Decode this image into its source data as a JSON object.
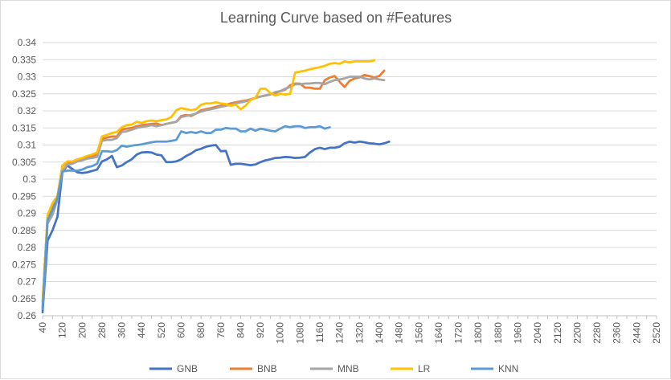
{
  "chart_data": {
    "type": "line",
    "title": "Learning Curve based on #Features",
    "xlabel": "",
    "ylabel": "",
    "ylim": [
      0.26,
      0.34
    ],
    "y_ticks": [
      "0.26",
      "0.265",
      "0.27",
      "0.275",
      "0.28",
      "0.285",
      "0.29",
      "0.295",
      "0.3",
      "0.305",
      "0.31",
      "0.315",
      "0.32",
      "0.325",
      "0.33",
      "0.335",
      "0.34"
    ],
    "x_ticks": [
      "40",
      "80",
      "120",
      "160",
      "200",
      "240",
      "280",
      "320",
      "360",
      "400",
      "440",
      "480",
      "520",
      "560",
      "600",
      "640",
      "680",
      "720",
      "760",
      "800",
      "840",
      "880",
      "920",
      "960",
      "1000",
      "1040",
      "1080",
      "1120",
      "1160",
      "1200",
      "1240",
      "1280",
      "1320",
      "1360",
      "1400",
      "1440",
      "1480",
      "1520",
      "1560",
      "1600",
      "1640",
      "1680",
      "1720",
      "1760",
      "1800",
      "1840",
      "1880",
      "1920",
      "1960",
      "2000",
      "2040",
      "2080",
      "2120",
      "2160",
      "2200",
      "2240",
      "2280",
      "2320",
      "2360",
      "2400",
      "2440",
      "2480",
      "2520"
    ],
    "x_tick_labels_visible": [
      "40",
      "120",
      "200",
      "280",
      "360",
      "440",
      "520",
      "600",
      "680",
      "760",
      "840",
      "920",
      "1000",
      "1080",
      "1160",
      "1240",
      "1320",
      "1400",
      "1480",
      "1560",
      "1640",
      "1720",
      "1800",
      "1880",
      "1960",
      "2040",
      "2120",
      "2200",
      "2280",
      "2360",
      "2440",
      "2520"
    ],
    "grid": true,
    "legend_position": "bottom",
    "x_step": 20,
    "series": [
      {
        "name": "GNB",
        "color": "#4472C4",
        "x_start": 40,
        "values": [
          0.261,
          0.282,
          0.285,
          0.289,
          0.302,
          0.304,
          0.303,
          0.302,
          0.3018,
          0.302,
          0.3024,
          0.3028,
          0.3052,
          0.3058,
          0.3068,
          0.3035,
          0.304,
          0.305,
          0.3058,
          0.3072,
          0.3078,
          0.3079,
          0.3078,
          0.3072,
          0.307,
          0.305,
          0.305,
          0.3052,
          0.3058,
          0.3068,
          0.3075,
          0.3085,
          0.3089,
          0.3095,
          0.3098,
          0.31,
          0.3082,
          0.3083,
          0.3042,
          0.3045,
          0.3045,
          0.3043,
          0.3041,
          0.3043,
          0.305,
          0.3055,
          0.3058,
          0.3062,
          0.3063,
          0.3065,
          0.3064,
          0.3062,
          0.3063,
          0.3065,
          0.3078,
          0.3088,
          0.3092,
          0.3088,
          0.3092,
          0.3092,
          0.3095,
          0.3105,
          0.311,
          0.3107,
          0.311,
          0.3108,
          0.3105,
          0.3104,
          0.3102,
          0.3105,
          0.311
        ]
      },
      {
        "name": "BNB",
        "color": "#ED7D31",
        "x_start": 40,
        "values": [
          0.264,
          0.289,
          0.292,
          0.295,
          0.3038,
          0.305,
          0.3048,
          0.3055,
          0.306,
          0.3065,
          0.3068,
          0.3072,
          0.3118,
          0.3122,
          0.3125,
          0.3125,
          0.3145,
          0.3148,
          0.315,
          0.3155,
          0.3158,
          0.316,
          0.3162,
          0.3163,
          0.3158,
          0.3162,
          0.3165,
          0.3168,
          0.3185,
          0.3188,
          0.3185,
          0.3192,
          0.3202,
          0.3205,
          0.3208,
          0.3212,
          0.3215,
          0.3218,
          0.3222,
          0.3225,
          0.3228,
          0.323,
          0.3234,
          0.3238,
          0.3242,
          0.3245,
          0.3248,
          0.3252,
          0.3258,
          0.3262,
          0.3275,
          0.328,
          0.328,
          0.3268,
          0.3268,
          0.3265,
          0.3265,
          0.329,
          0.3298,
          0.3302,
          0.3285,
          0.327,
          0.3288,
          0.3295,
          0.3298,
          0.3305,
          0.3302,
          0.3298,
          0.3302,
          0.3318
        ]
      },
      {
        "name": "MNB",
        "color": "#A5A5A5",
        "x_start": 40,
        "values": [
          0.2625,
          0.287,
          0.2895,
          0.294,
          0.3025,
          0.3042,
          0.3045,
          0.3052,
          0.3055,
          0.306,
          0.3062,
          0.3065,
          0.3112,
          0.3115,
          0.3115,
          0.312,
          0.3138,
          0.314,
          0.3145,
          0.315,
          0.3153,
          0.3155,
          0.3158,
          0.3155,
          0.3158,
          0.3162,
          0.3165,
          0.3168,
          0.3182,
          0.3185,
          0.3188,
          0.3192,
          0.3198,
          0.3202,
          0.3205,
          0.3208,
          0.3212,
          0.3215,
          0.3218,
          0.3222,
          0.3225,
          0.3228,
          0.3232,
          0.3238,
          0.3242,
          0.3245,
          0.3248,
          0.3255,
          0.3258,
          0.3265,
          0.327,
          0.3278,
          0.3278,
          0.328,
          0.328,
          0.3282,
          0.3282,
          0.3278,
          0.3285,
          0.329,
          0.3292,
          0.3295,
          0.33,
          0.33,
          0.33,
          0.3295,
          0.3292,
          0.3295,
          0.3292,
          0.329
        ]
      },
      {
        "name": "LR",
        "color": "#FFC000",
        "x_start": 40,
        "values": [
          0.264,
          0.2895,
          0.293,
          0.295,
          0.304,
          0.3052,
          0.3052,
          0.3058,
          0.3062,
          0.3068,
          0.3072,
          0.3078,
          0.3125,
          0.313,
          0.3135,
          0.3138,
          0.3152,
          0.3158,
          0.316,
          0.3168,
          0.3165,
          0.317,
          0.3172,
          0.317,
          0.3173,
          0.3175,
          0.3182,
          0.3202,
          0.3208,
          0.3205,
          0.3202,
          0.3205,
          0.3218,
          0.3222,
          0.3222,
          0.3225,
          0.3222,
          0.322,
          0.3215,
          0.3218,
          0.3205,
          0.3215,
          0.3232,
          0.3238,
          0.3265,
          0.3265,
          0.3252,
          0.3245,
          0.325,
          0.3248,
          0.325,
          0.3312,
          0.3315,
          0.3318,
          0.3322,
          0.3325,
          0.3328,
          0.3332,
          0.3338,
          0.334,
          0.3338,
          0.3345,
          0.3342,
          0.3345,
          0.3345,
          0.3345,
          0.3345,
          0.3348
        ]
      },
      {
        "name": "KNN",
        "color": "#5B9BD5",
        "x_start": 40,
        "values": [
          0.262,
          0.288,
          0.291,
          0.2945,
          0.3022,
          0.3025,
          0.3025,
          0.3025,
          0.3028,
          0.3035,
          0.3038,
          0.3045,
          0.3082,
          0.3082,
          0.308,
          0.3085,
          0.3098,
          0.3095,
          0.3098,
          0.31,
          0.3102,
          0.3105,
          0.3108,
          0.311,
          0.311,
          0.311,
          0.3112,
          0.3115,
          0.314,
          0.3135,
          0.3138,
          0.3135,
          0.314,
          0.3135,
          0.3135,
          0.3145,
          0.3145,
          0.315,
          0.3148,
          0.3148,
          0.314,
          0.314,
          0.3148,
          0.3142,
          0.3148,
          0.3145,
          0.3142,
          0.314,
          0.3148,
          0.3155,
          0.3152,
          0.3155,
          0.3155,
          0.315,
          0.3152,
          0.3152,
          0.3155,
          0.3148,
          0.3152
        ]
      }
    ]
  }
}
